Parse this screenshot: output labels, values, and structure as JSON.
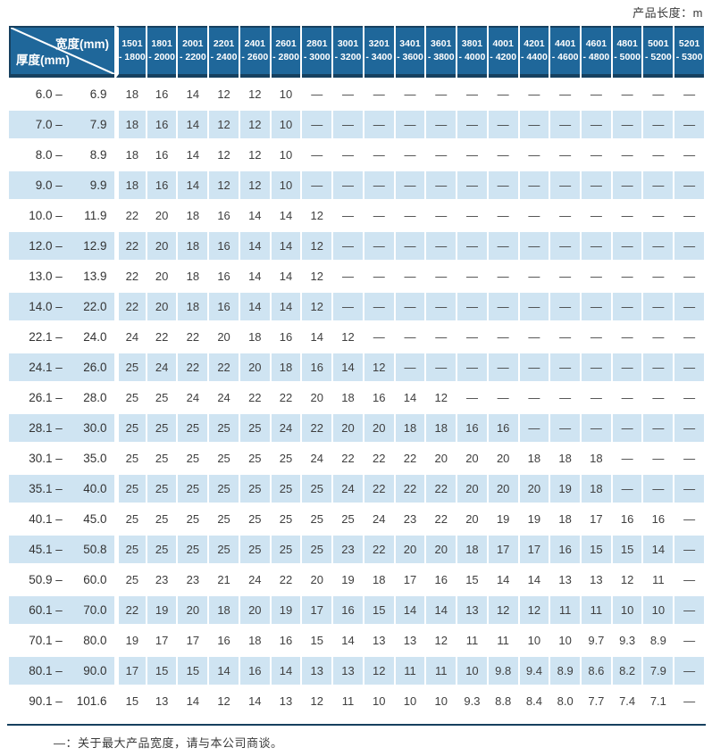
{
  "page": {
    "unit_label": "产品长度：m",
    "footnote": "—：关于最大产品宽度，请与本公司商谈。"
  },
  "colors": {
    "header_blue": "#1f679a",
    "navy": "#16405f",
    "alt_row": "#cfe4f2"
  },
  "table": {
    "corner": {
      "top_label": "宽度(mm)",
      "bottom_label": "厚度(mm)"
    },
    "range_separator": "–",
    "columns": [
      {
        "line1": "1501",
        "line2": "- 1800"
      },
      {
        "line1": "1801",
        "line2": "- 2000"
      },
      {
        "line1": "2001",
        "line2": "- 2200"
      },
      {
        "line1": "2201",
        "line2": "- 2400"
      },
      {
        "line1": "2401",
        "line2": "- 2600"
      },
      {
        "line1": "2601",
        "line2": "- 2800"
      },
      {
        "line1": "2801",
        "line2": "- 3000"
      },
      {
        "line1": "3001",
        "line2": "- 3200"
      },
      {
        "line1": "3201",
        "line2": "- 3400"
      },
      {
        "line1": "3401",
        "line2": "- 3600"
      },
      {
        "line1": "3601",
        "line2": "- 3800"
      },
      {
        "line1": "3801",
        "line2": "- 4000"
      },
      {
        "line1": "4001",
        "line2": "- 4200"
      },
      {
        "line1": "4201",
        "line2": "- 4400"
      },
      {
        "line1": "4401",
        "line2": "- 4600"
      },
      {
        "line1": "4601",
        "line2": "- 4800"
      },
      {
        "line1": "4801",
        "line2": "- 5000"
      },
      {
        "line1": "5001",
        "line2": "- 5200"
      },
      {
        "line1": "5201",
        "line2": "- 5300"
      }
    ],
    "rows": [
      {
        "low": "6.0",
        "high": "6.9",
        "values": [
          "18",
          "16",
          "14",
          "12",
          "12",
          "10",
          "—",
          "—",
          "—",
          "—",
          "—",
          "—",
          "—",
          "—",
          "—",
          "—",
          "—",
          "—",
          "—"
        ]
      },
      {
        "low": "7.0",
        "high": "7.9",
        "values": [
          "18",
          "16",
          "14",
          "12",
          "12",
          "10",
          "—",
          "—",
          "—",
          "—",
          "—",
          "—",
          "—",
          "—",
          "—",
          "—",
          "—",
          "—",
          "—"
        ]
      },
      {
        "low": "8.0",
        "high": "8.9",
        "values": [
          "18",
          "16",
          "14",
          "12",
          "12",
          "10",
          "—",
          "—",
          "—",
          "—",
          "—",
          "—",
          "—",
          "—",
          "—",
          "—",
          "—",
          "—",
          "—"
        ]
      },
      {
        "low": "9.0",
        "high": "9.9",
        "values": [
          "18",
          "16",
          "14",
          "12",
          "12",
          "10",
          "—",
          "—",
          "—",
          "—",
          "—",
          "—",
          "—",
          "—",
          "—",
          "—",
          "—",
          "—",
          "—"
        ]
      },
      {
        "low": "10.0",
        "high": "11.9",
        "values": [
          "22",
          "20",
          "18",
          "16",
          "14",
          "14",
          "12",
          "—",
          "—",
          "—",
          "—",
          "—",
          "—",
          "—",
          "—",
          "—",
          "—",
          "—",
          "—"
        ]
      },
      {
        "low": "12.0",
        "high": "12.9",
        "values": [
          "22",
          "20",
          "18",
          "16",
          "14",
          "14",
          "12",
          "—",
          "—",
          "—",
          "—",
          "—",
          "—",
          "—",
          "—",
          "—",
          "—",
          "—",
          "—"
        ]
      },
      {
        "low": "13.0",
        "high": "13.9",
        "values": [
          "22",
          "20",
          "18",
          "16",
          "14",
          "14",
          "12",
          "—",
          "—",
          "—",
          "—",
          "—",
          "—",
          "—",
          "—",
          "—",
          "—",
          "—",
          "—"
        ]
      },
      {
        "low": "14.0",
        "high": "22.0",
        "values": [
          "22",
          "20",
          "18",
          "16",
          "14",
          "14",
          "12",
          "—",
          "—",
          "—",
          "—",
          "—",
          "—",
          "—",
          "—",
          "—",
          "—",
          "—",
          "—"
        ]
      },
      {
        "low": "22.1",
        "high": "24.0",
        "values": [
          "24",
          "22",
          "22",
          "20",
          "18",
          "16",
          "14",
          "12",
          "—",
          "—",
          "—",
          "—",
          "—",
          "—",
          "—",
          "—",
          "—",
          "—",
          "—"
        ]
      },
      {
        "low": "24.1",
        "high": "26.0",
        "values": [
          "25",
          "24",
          "22",
          "22",
          "20",
          "18",
          "16",
          "14",
          "12",
          "—",
          "—",
          "—",
          "—",
          "—",
          "—",
          "—",
          "—",
          "—",
          "—"
        ]
      },
      {
        "low": "26.1",
        "high": "28.0",
        "values": [
          "25",
          "25",
          "24",
          "24",
          "22",
          "22",
          "20",
          "18",
          "16",
          "14",
          "12",
          "—",
          "—",
          "—",
          "—",
          "—",
          "—",
          "—",
          "—"
        ]
      },
      {
        "low": "28.1",
        "high": "30.0",
        "values": [
          "25",
          "25",
          "25",
          "25",
          "25",
          "24",
          "22",
          "20",
          "20",
          "18",
          "18",
          "16",
          "16",
          "—",
          "—",
          "—",
          "—",
          "—",
          "—"
        ]
      },
      {
        "low": "30.1",
        "high": "35.0",
        "values": [
          "25",
          "25",
          "25",
          "25",
          "25",
          "25",
          "24",
          "22",
          "22",
          "22",
          "20",
          "20",
          "20",
          "18",
          "18",
          "18",
          "—",
          "—",
          "—"
        ]
      },
      {
        "low": "35.1",
        "high": "40.0",
        "values": [
          "25",
          "25",
          "25",
          "25",
          "25",
          "25",
          "25",
          "24",
          "22",
          "22",
          "22",
          "20",
          "20",
          "20",
          "19",
          "18",
          "—",
          "—",
          "—"
        ]
      },
      {
        "low": "40.1",
        "high": "45.0",
        "values": [
          "25",
          "25",
          "25",
          "25",
          "25",
          "25",
          "25",
          "25",
          "24",
          "23",
          "22",
          "20",
          "19",
          "19",
          "18",
          "17",
          "16",
          "16",
          "—"
        ]
      },
      {
        "low": "45.1",
        "high": "50.8",
        "values": [
          "25",
          "25",
          "25",
          "25",
          "25",
          "25",
          "25",
          "23",
          "22",
          "20",
          "20",
          "18",
          "17",
          "17",
          "16",
          "15",
          "15",
          "14",
          "—"
        ]
      },
      {
        "low": "50.9",
        "high": "60.0",
        "values": [
          "25",
          "23",
          "23",
          "21",
          "24",
          "22",
          "20",
          "19",
          "18",
          "17",
          "16",
          "15",
          "14",
          "14",
          "13",
          "13",
          "12",
          "11",
          "—"
        ]
      },
      {
        "low": "60.1",
        "high": "70.0",
        "values": [
          "22",
          "19",
          "20",
          "18",
          "20",
          "19",
          "17",
          "16",
          "15",
          "14",
          "14",
          "13",
          "12",
          "12",
          "11",
          "11",
          "10",
          "10",
          "—"
        ]
      },
      {
        "low": "70.1",
        "high": "80.0",
        "values": [
          "19",
          "17",
          "17",
          "16",
          "18",
          "16",
          "15",
          "14",
          "13",
          "13",
          "12",
          "11",
          "11",
          "10",
          "10",
          "9.7",
          "9.3",
          "8.9",
          "—"
        ]
      },
      {
        "low": "80.1",
        "high": "90.0",
        "values": [
          "17",
          "15",
          "15",
          "14",
          "16",
          "14",
          "13",
          "13",
          "12",
          "11",
          "11",
          "10",
          "9.8",
          "9.4",
          "8.9",
          "8.6",
          "8.2",
          "7.9",
          "—"
        ]
      },
      {
        "low": "90.1",
        "high": "101.6",
        "values": [
          "15",
          "13",
          "14",
          "12",
          "14",
          "13",
          "12",
          "11",
          "10",
          "10",
          "10",
          "9.3",
          "8.8",
          "8.4",
          "8.0",
          "7.7",
          "7.4",
          "7.1",
          "—"
        ]
      }
    ]
  }
}
